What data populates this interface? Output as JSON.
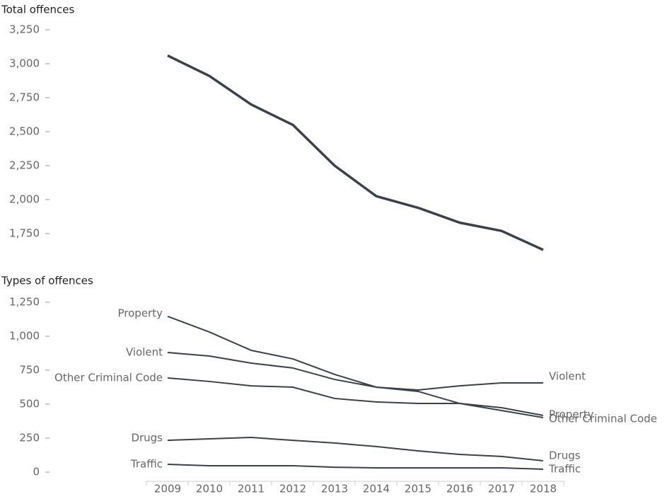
{
  "chart_data": [
    {
      "type": "line",
      "title": "Total offences",
      "series": [
        {
          "name": null,
          "color": "#3b414c",
          "values": [
            3060,
            2910,
            2700,
            2550,
            2250,
            2025,
            1940,
            1830,
            1770,
            1630
          ]
        }
      ],
      "ylim": [
        1625,
        3250
      ],
      "yticks": [
        {
          "value": 1750,
          "label": "1,750"
        },
        {
          "value": 2000,
          "label": "2,000"
        },
        {
          "value": 2250,
          "label": "2,250"
        },
        {
          "value": 2500,
          "label": "2,500"
        },
        {
          "value": 2750,
          "label": "2,750"
        },
        {
          "value": 3000,
          "label": "3,000"
        },
        {
          "value": 3250,
          "label": "3,250"
        }
      ]
    },
    {
      "type": "line",
      "title": "Types of offences",
      "categories": [
        "2009",
        "2010",
        "2011",
        "2012",
        "2013",
        "2014",
        "2015",
        "2016",
        "2017",
        "2018"
      ],
      "series": [
        {
          "name": "Property",
          "color": "#3b414c",
          "values": [
            1146,
            1031,
            896,
            833,
            719,
            625,
            594,
            505,
            453,
            401
          ]
        },
        {
          "name": "Violent",
          "color": "#3b414c",
          "values": [
            880,
            854,
            802,
            766,
            682,
            625,
            604,
            635,
            656,
            656
          ]
        },
        {
          "name": "Other Criminal Code",
          "color": "#3b414c",
          "values": [
            693,
            667,
            635,
            625,
            542,
            516,
            505,
            505,
            474,
            417
          ]
        },
        {
          "name": "Drugs",
          "color": "#3b414c",
          "values": [
            234,
            245,
            255,
            234,
            214,
            188,
            156,
            130,
            115,
            83
          ]
        },
        {
          "name": "Traffic",
          "color": "#3b414c",
          "values": [
            57,
            47,
            47,
            47,
            36,
            31,
            31,
            31,
            31,
            21
          ]
        }
      ],
      "ylim": [
        0,
        1250
      ],
      "yticks": [
        0,
        250,
        500,
        750,
        {
          "value": 1000,
          "label": "1,000"
        },
        {
          "value": 1250,
          "label": "1,250"
        }
      ]
    }
  ]
}
